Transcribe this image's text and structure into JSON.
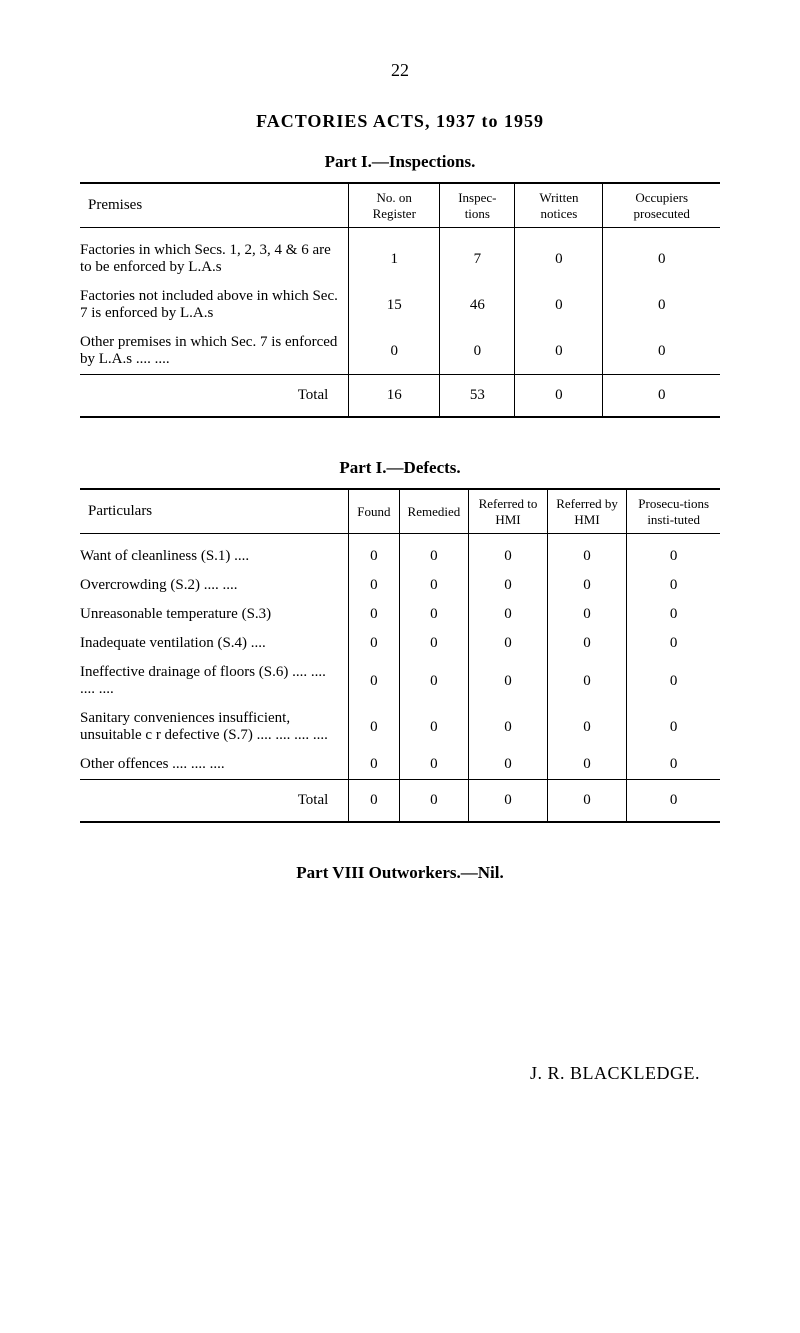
{
  "page_number": "22",
  "main_title": "FACTORIES ACTS, 1937 to 1959",
  "part1_inspections": {
    "title": "Part I.—Inspections.",
    "columns": [
      "Premises",
      "No. on Register",
      "Inspec-tions",
      "Written notices",
      "Occupiers prosecuted"
    ],
    "rows": [
      {
        "label": "Factories in which Secs. 1, 2, 3, 4 & 6 are to be enforced by L.A.s",
        "values": [
          "1",
          "7",
          "0",
          "0"
        ]
      },
      {
        "label": "Factories not included above in which Sec. 7 is enforced by L.A.s",
        "values": [
          "15",
          "46",
          "0",
          "0"
        ]
      },
      {
        "label": "Other premises in which Sec. 7 is enforced by L.A.s   ....   ....",
        "values": [
          "0",
          "0",
          "0",
          "0"
        ]
      }
    ],
    "total": {
      "label": "Total",
      "values": [
        "16",
        "53",
        "0",
        "0"
      ]
    }
  },
  "part1_defects": {
    "title": "Part I.—Defects.",
    "columns": [
      "Particulars",
      "Found",
      "Remedied",
      "Referred to HMI",
      "Referred by HMI",
      "Prosecu-tions insti-tuted"
    ],
    "rows": [
      {
        "label": "Want of cleanliness (S.1)    ....",
        "values": [
          "0",
          "0",
          "0",
          "0",
          "0"
        ]
      },
      {
        "label": "Overcrowding  (S.2)    ....   ....",
        "values": [
          "0",
          "0",
          "0",
          "0",
          "0"
        ]
      },
      {
        "label": "Unreasonable temperature (S.3)",
        "values": [
          "0",
          "0",
          "0",
          "0",
          "0"
        ]
      },
      {
        "label": "Inadequate ventilation (S.4) ....",
        "values": [
          "0",
          "0",
          "0",
          "0",
          "0"
        ]
      },
      {
        "label": "Ineffective drainage of floors (S.6)     ....    ....    ....    ....",
        "values": [
          "0",
          "0",
          "0",
          "0",
          "0"
        ]
      },
      {
        "label": "Sanitary conveniences insufficient, unsuitable c r defective (S.7)     ....    ....    ....    ....",
        "values": [
          "0",
          "0",
          "0",
          "0",
          "0"
        ]
      },
      {
        "label": "Other offences  ....    ....    ....",
        "values": [
          "0",
          "0",
          "0",
          "0",
          "0"
        ]
      }
    ],
    "total": {
      "label": "Total",
      "values": [
        "0",
        "0",
        "0",
        "0",
        "0"
      ]
    }
  },
  "part8": "Part VIII Outworkers.—Nil.",
  "author": "J. R. BLACKLEDGE."
}
